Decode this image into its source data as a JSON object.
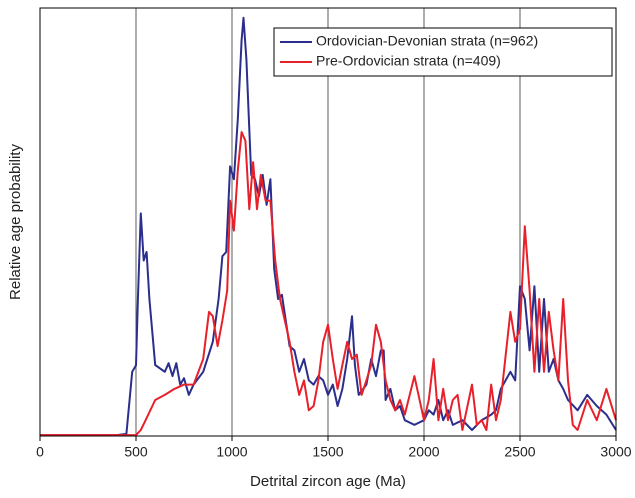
{
  "chart_data": {
    "type": "line",
    "x_label": "Detrital zircon age (Ma)",
    "y_label": "Relative age probability",
    "xlim": [
      0,
      3000
    ],
    "ylim": [
      0,
      100
    ],
    "xticks": [
      0,
      500,
      1000,
      1500,
      2000,
      2500,
      3000
    ],
    "grid": true,
    "legend": "top-right",
    "series": [
      {
        "name": "Ordovician-Devonian strata (n=962)",
        "color": "#2b2f8c",
        "x": [
          0,
          400,
          450,
          480,
          500,
          510,
          525,
          540,
          555,
          570,
          600,
          650,
          670,
          690,
          710,
          730,
          750,
          775,
          800,
          850,
          900,
          930,
          950,
          970,
          990,
          1010,
          1030,
          1050,
          1060,
          1075,
          1100,
          1120,
          1140,
          1160,
          1180,
          1200,
          1220,
          1240,
          1260,
          1300,
          1325,
          1350,
          1375,
          1400,
          1425,
          1450,
          1475,
          1500,
          1525,
          1550,
          1575,
          1600,
          1625,
          1640,
          1660,
          1700,
          1725,
          1750,
          1775,
          1790,
          1800,
          1825,
          1850,
          1875,
          1900,
          1950,
          2000,
          2025,
          2050,
          2075,
          2100,
          2125,
          2150,
          2200,
          2250,
          2300,
          2350,
          2375,
          2400,
          2425,
          2450,
          2475,
          2500,
          2525,
          2550,
          2575,
          2600,
          2625,
          2650,
          2675,
          2700,
          2725,
          2750,
          2800,
          2850,
          2900,
          2950,
          3000
        ],
        "values": [
          0.2,
          0.2,
          0.5,
          15,
          16.5,
          32,
          52,
          41,
          43,
          32,
          16.6,
          15,
          17,
          14,
          17,
          12,
          13.5,
          9.6,
          12,
          15,
          22,
          32,
          42,
          43,
          63,
          60,
          74,
          92.5,
          97.7,
          88,
          61,
          60,
          56,
          61,
          54,
          60,
          39,
          32,
          33,
          21,
          20,
          15,
          18,
          13,
          12,
          14,
          13,
          9.6,
          12,
          7,
          11,
          18,
          28,
          16.6,
          9.6,
          12,
          18,
          14,
          20,
          20,
          8.4,
          11,
          6,
          7,
          3.7,
          2.6,
          3.7,
          6,
          5,
          8.4,
          3.7,
          6,
          2.6,
          3.7,
          1.4,
          3.7,
          5,
          6,
          11,
          13,
          15,
          13,
          35,
          32,
          20,
          35,
          15,
          32,
          15,
          18,
          13,
          11,
          8.4,
          6,
          9.6,
          7,
          5,
          1.4
        ]
      },
      {
        "name": "Pre-Ordovician strata (n=409)",
        "color": "#e8202a",
        "x": [
          0,
          500,
          525,
          550,
          600,
          650,
          700,
          750,
          800,
          850,
          880,
          900,
          925,
          950,
          975,
          990,
          1010,
          1030,
          1050,
          1070,
          1090,
          1110,
          1130,
          1150,
          1175,
          1200,
          1225,
          1250,
          1275,
          1300,
          1325,
          1350,
          1375,
          1400,
          1425,
          1450,
          1475,
          1500,
          1525,
          1550,
          1575,
          1600,
          1625,
          1650,
          1675,
          1700,
          1725,
          1750,
          1775,
          1800,
          1825,
          1850,
          1875,
          1900,
          1950,
          2000,
          2025,
          2050,
          2075,
          2100,
          2125,
          2150,
          2175,
          2200,
          2250,
          2275,
          2300,
          2325,
          2350,
          2375,
          2400,
          2450,
          2475,
          2500,
          2525,
          2550,
          2575,
          2600,
          2625,
          2650,
          2675,
          2700,
          2725,
          2750,
          2775,
          2800,
          2850,
          2900,
          2950,
          3000
        ],
        "values": [
          0.2,
          0.2,
          1.4,
          3.7,
          8.4,
          9.6,
          11,
          12,
          12,
          18,
          29,
          28,
          21,
          27,
          34,
          55,
          48,
          62,
          71,
          69,
          53,
          64,
          53,
          61,
          55,
          55,
          41,
          32,
          27,
          22,
          15,
          9.6,
          13,
          6,
          7,
          13,
          22,
          26,
          18,
          11,
          16.6,
          22,
          18,
          19,
          9.6,
          13,
          16.6,
          26,
          22,
          13,
          8.4,
          6,
          8.4,
          5,
          14,
          3.7,
          8.4,
          18,
          3.7,
          11,
          3.7,
          8.4,
          9.6,
          1.4,
          12,
          2.6,
          3.7,
          1.4,
          12,
          3.7,
          8.4,
          29,
          22,
          25,
          49,
          34,
          15,
          32,
          15,
          29,
          20,
          13,
          32,
          13,
          2.6,
          1.4,
          8.4,
          3.7,
          11,
          3.7
        ]
      }
    ]
  }
}
